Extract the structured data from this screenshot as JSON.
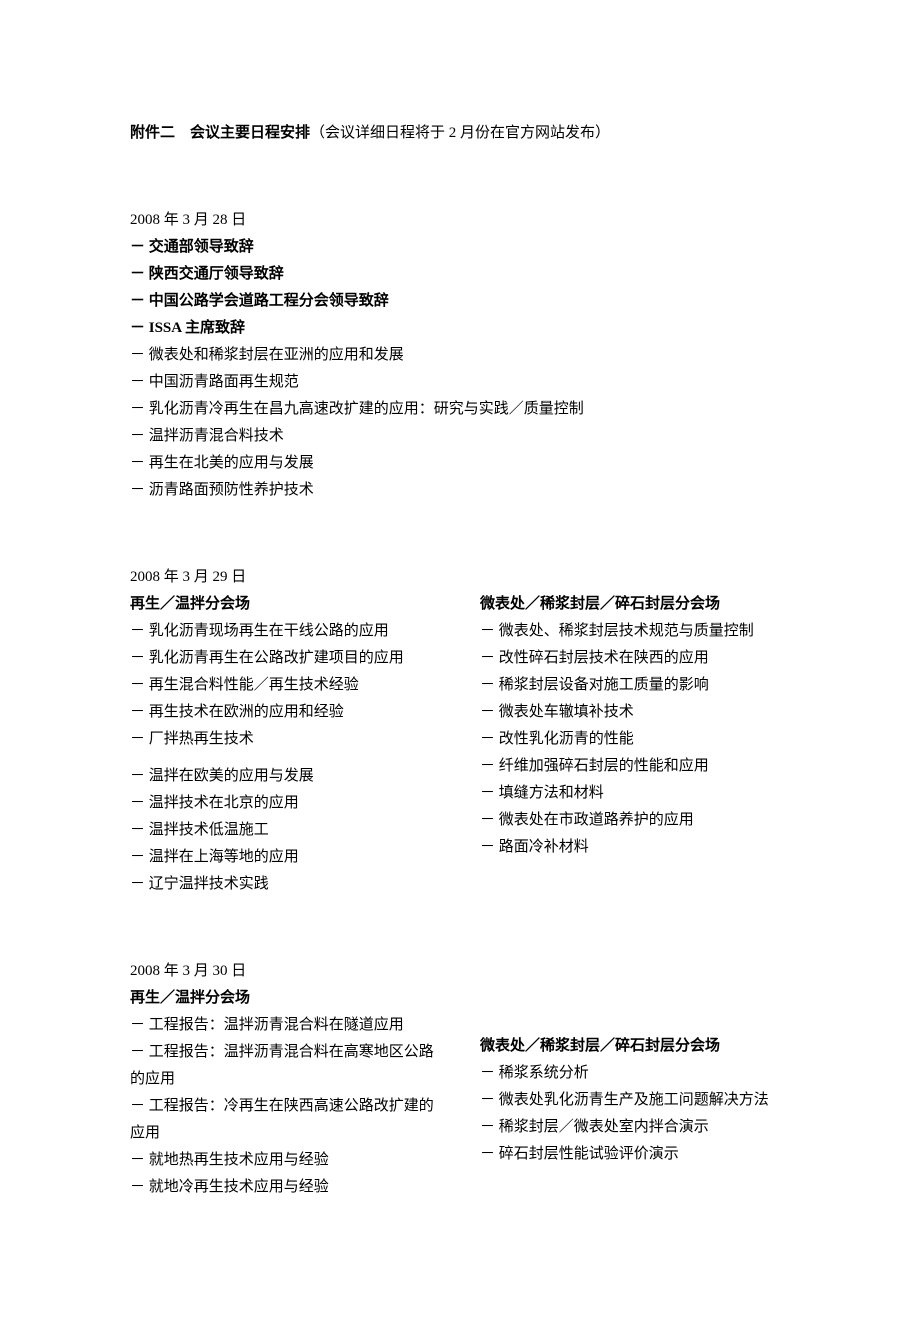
{
  "header": {
    "bold_part": "附件二　会议主要日程安排",
    "normal_part": "（会议详细日程将于 2 月份在官方网站发布）"
  },
  "day1": {
    "date": "2008 年 3 月 28 日",
    "items": [
      {
        "text": "－ 交通部领导致辞",
        "bold": true
      },
      {
        "text": "－ 陕西交通厅领导致辞",
        "bold": true
      },
      {
        "text": "－ 中国公路学会道路工程分会领导致辞",
        "bold": true
      },
      {
        "text": "－ ISSA 主席致辞",
        "bold": true
      },
      {
        "text": "－ 微表处和稀浆封层在亚洲的应用和发展",
        "bold": false
      },
      {
        "text": "－ 中国沥青路面再生规范",
        "bold": false
      },
      {
        "text": "－ 乳化沥青冷再生在昌九高速改扩建的应用：研究与实践／质量控制",
        "bold": false
      },
      {
        "text": "－ 温拌沥青混合料技术",
        "bold": false
      },
      {
        "text": "－ 再生在北美的应用与发展",
        "bold": false
      },
      {
        "text": "－ 沥青路面预防性养护技术",
        "bold": false
      }
    ]
  },
  "day2": {
    "date": "2008 年 3 月 29 日",
    "left": {
      "title": "再生／温拌分会场",
      "group1": [
        "－ 乳化沥青现场再生在干线公路的应用",
        "－ 乳化沥青再生在公路改扩建项目的应用",
        "－ 再生混合料性能／再生技术经验",
        "－ 再生技术在欧洲的应用和经验",
        "－ 厂拌热再生技术"
      ],
      "group2": [
        "－ 温拌在欧美的应用与发展",
        "－ 温拌技术在北京的应用",
        "－ 温拌技术低温施工",
        "－ 温拌在上海等地的应用",
        "－ 辽宁温拌技术实践"
      ]
    },
    "right": {
      "title": "微表处／稀浆封层／碎石封层分会场",
      "items": [
        "－ 微表处、稀浆封层技术规范与质量控制",
        "－ 改性碎石封层技术在陕西的应用",
        "－ 稀浆封层设备对施工质量的影响",
        "－ 微表处车辙填补技术",
        "－ 改性乳化沥青的性能",
        "－ 纤维加强碎石封层的性能和应用",
        "－ 填缝方法和材料",
        "－ 微表处在市政道路养护的应用",
        "－ 路面冷补材料"
      ]
    }
  },
  "day3": {
    "date": "2008 年 3 月 30 日",
    "left": {
      "title": "再生／温拌分会场",
      "items": [
        "－ 工程报告：温拌沥青混合料在隧道应用",
        "－ 工程报告：温拌沥青混合料在高寒地区公路的应用",
        "－ 工程报告：冷再生在陕西高速公路改扩建的应用",
        "－ 就地热再生技术应用与经验",
        "－ 就地冷再生技术应用与经验"
      ]
    },
    "right": {
      "title": "微表处／稀浆封层／碎石封层分会场",
      "items": [
        "－ 稀浆系统分析",
        "－ 微表处乳化沥青生产及施工问题解决方法",
        "－ 稀浆封层／微表处室内拌合演示",
        "－ 碎石封层性能试验评价演示"
      ]
    }
  }
}
